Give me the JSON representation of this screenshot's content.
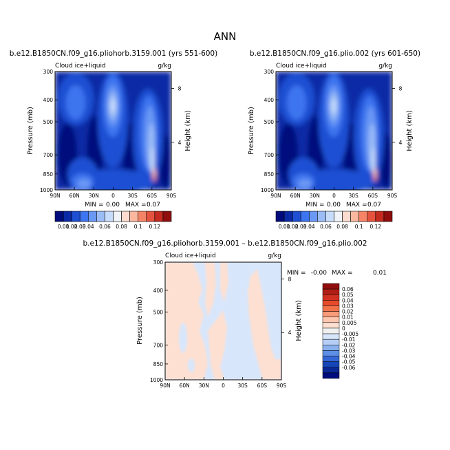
{
  "figure_title": "ANN",
  "chart_data": [
    {
      "type": "contour",
      "title": "b.e12.B1850CN.f09_g16.pliohorb.3159.001 (yrs 551-600)",
      "variable": "Cloud ice+liquid",
      "units": "g/kg",
      "ylabel": "Pressure (mb)",
      "ylabel_right": "Height (km)",
      "x_ticks": [
        "90N",
        "60N",
        "30N",
        "0",
        "30S",
        "60S",
        "90S"
      ],
      "y_ticks": [
        "300",
        "400",
        "500",
        "700",
        "850",
        "1000"
      ],
      "y_right_ticks": [
        "8",
        "4"
      ],
      "stats": {
        "min_label": "MIN =",
        "min": "0.00",
        "max_label": "MAX =",
        "max": "0.07"
      },
      "colorbar": [
        "0.01",
        "0.02",
        "0.03",
        "0.04",
        "0.06",
        "0.08",
        "0.1",
        "0.12"
      ]
    },
    {
      "type": "contour",
      "title": "b.e12.B1850CN.f09_g16.plio.002 (yrs 601-650)",
      "variable": "Cloud ice+liquid",
      "units": "g/kg",
      "ylabel": "Pressure (mb)",
      "ylabel_right": "Height (km)",
      "x_ticks": [
        "90N",
        "60N",
        "30N",
        "0",
        "30S",
        "60S",
        "90S"
      ],
      "y_ticks": [
        "300",
        "400",
        "500",
        "700",
        "850",
        "1000"
      ],
      "y_right_ticks": [
        "8",
        "4"
      ],
      "stats": {
        "min_label": "MIN =",
        "min": "0.00",
        "max_label": "MAX =",
        "max": "0.07"
      },
      "colorbar": [
        "0.01",
        "0.02",
        "0.03",
        "0.04",
        "0.06",
        "0.08",
        "0.1",
        "0.12"
      ]
    },
    {
      "type": "contour",
      "title": "b.e12.B1850CN.f09_g16.pliohorb.3159.001 – b.e12.B1850CN.f09_g16.plio.002",
      "variable": "Cloud ice+liquid",
      "units": "g/kg",
      "ylabel": "Pressure (mb)",
      "ylabel_right": "Height (km)",
      "x_ticks": [
        "90N",
        "60N",
        "30N",
        "0",
        "30S",
        "60S",
        "90S"
      ],
      "y_ticks": [
        "300",
        "400",
        "500",
        "700",
        "850",
        "1000"
      ],
      "y_right_ticks": [
        "8",
        "4"
      ],
      "stats": {
        "min_label": "MIN =",
        "min": "-0.00",
        "max_label": "MAX =",
        "max": "0.01"
      },
      "colorbar": [
        "0.06",
        "0.05",
        "0.04",
        "0.03",
        "0.02",
        "0.01",
        "0.005",
        "0",
        "-0.005",
        "-0.01",
        "-0.02",
        "-0.03",
        "-0.04",
        "-0.05",
        "-0.06"
      ]
    }
  ],
  "colors": {
    "abs_levels": [
      "#000c7c",
      "#0b2aa6",
      "#1f4fd3",
      "#3d74ef",
      "#6a98f5",
      "#9bbcf6",
      "#c7dcfa",
      "#f0f3f8",
      "#fddccf",
      "#fbb89e",
      "#f58466",
      "#e5533f",
      "#c42a1f",
      "#8f0d0d"
    ],
    "diff_levels": [
      "#8f0d0d",
      "#b01e16",
      "#d0301f",
      "#e64b2b",
      "#f2724a",
      "#f89b7a",
      "#fcc5ae",
      "#fde0d2",
      "#f0f0f0",
      "#d8e6fb",
      "#b6cef5",
      "#8ab0ee",
      "#5e8fe6",
      "#3568d6",
      "#1446b8",
      "#0a2895",
      "#000c7c"
    ]
  }
}
